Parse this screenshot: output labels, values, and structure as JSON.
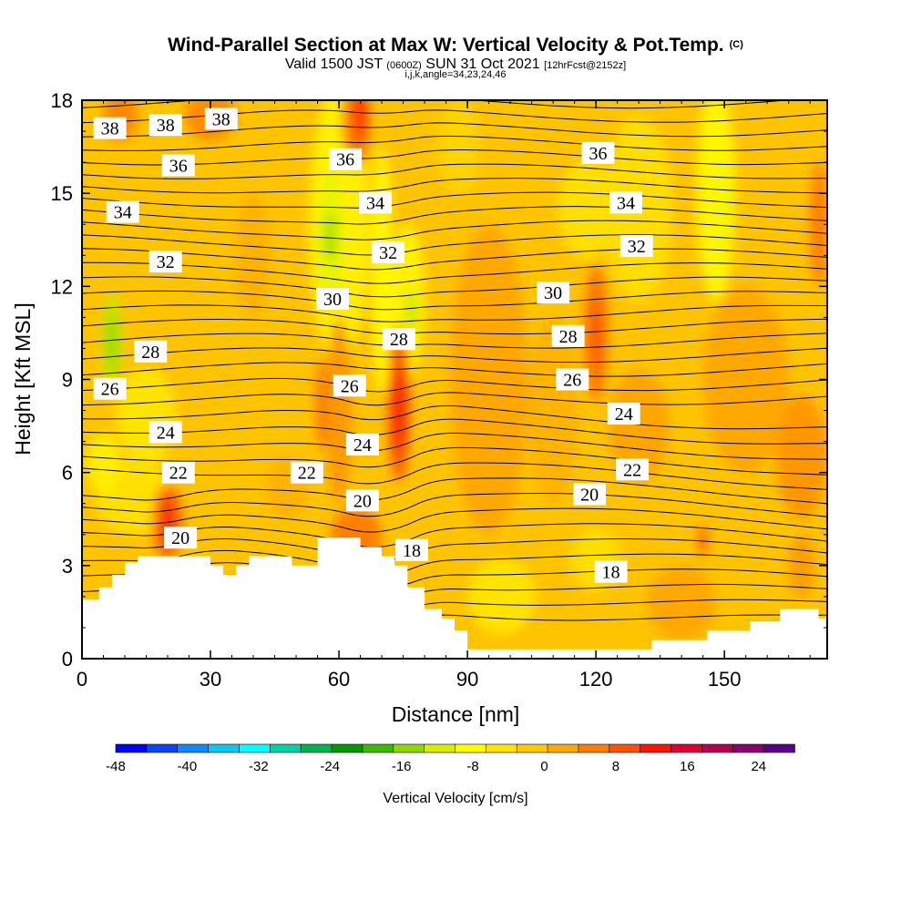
{
  "chart_data": {
    "type": "heatmap",
    "title": "Wind-Parallel Section at Max W: Vertical Velocity & Pot.Temp.",
    "copyright_mark": "(C)",
    "subtitle": {
      "prefix": "Valid 1500 JST",
      "utc": "(0600Z)",
      "date": "SUN 31 Oct 2021",
      "forecast": "[12hrFcst@2152z]"
    },
    "subtitle2": "i,j,k,angle=34,23,24,46",
    "xlabel": "Distance [nm]",
    "ylabel": "Height [Kft MSL]",
    "xlim": [
      0,
      174
    ],
    "ylim": [
      0,
      18
    ],
    "xticks": [
      0,
      30,
      60,
      90,
      120,
      150
    ],
    "yticks": [
      0,
      3,
      6,
      9,
      12,
      15,
      18
    ],
    "colorbar": {
      "label": "Vertical Velocity [cm/s]",
      "ticks": [
        -48,
        -40,
        -32,
        -24,
        -16,
        -8,
        0,
        8,
        16,
        24
      ],
      "min": -48,
      "max": 28,
      "colors": [
        "#0000ff",
        "#0a44ff",
        "#1188ff",
        "#0cc8ee",
        "#00ffff",
        "#00d2a8",
        "#00b44e",
        "#009a00",
        "#3cba00",
        "#8ed800",
        "#d8ee00",
        "#fefe00",
        "#ffe400",
        "#ffc800",
        "#ffa800",
        "#ff7e00",
        "#ff5200",
        "#ff1400",
        "#e00030",
        "#b80050",
        "#8c0070",
        "#5a0088"
      ]
    },
    "contour_labels": [
      {
        "text": "38",
        "x": 6.5,
        "y": 17.1
      },
      {
        "text": "38",
        "x": 19.5,
        "y": 17.2
      },
      {
        "text": "38",
        "x": 32.5,
        "y": 17.4
      },
      {
        "text": "36",
        "x": 22.5,
        "y": 15.9
      },
      {
        "text": "36",
        "x": 61.5,
        "y": 16.1
      },
      {
        "text": "36",
        "x": 120.5,
        "y": 16.3
      },
      {
        "text": "34",
        "x": 9.5,
        "y": 14.4
      },
      {
        "text": "34",
        "x": 68.5,
        "y": 14.7
      },
      {
        "text": "34",
        "x": 127,
        "y": 14.7
      },
      {
        "text": "32",
        "x": 19.5,
        "y": 12.8
      },
      {
        "text": "32",
        "x": 71.5,
        "y": 13.1
      },
      {
        "text": "32",
        "x": 129.5,
        "y": 13.3
      },
      {
        "text": "30",
        "x": 58.5,
        "y": 11.6
      },
      {
        "text": "30",
        "x": 110,
        "y": 11.8
      },
      {
        "text": "28",
        "x": 16,
        "y": 9.9
      },
      {
        "text": "28",
        "x": 74,
        "y": 10.3
      },
      {
        "text": "28",
        "x": 113.5,
        "y": 10.4
      },
      {
        "text": "26",
        "x": 6.5,
        "y": 8.7
      },
      {
        "text": "26",
        "x": 62.5,
        "y": 8.8
      },
      {
        "text": "26",
        "x": 114.5,
        "y": 9.0
      },
      {
        "text": "24",
        "x": 19.5,
        "y": 7.3
      },
      {
        "text": "24",
        "x": 65.5,
        "y": 6.9
      },
      {
        "text": "24",
        "x": 126.5,
        "y": 7.9
      },
      {
        "text": "22",
        "x": 22.5,
        "y": 6.0
      },
      {
        "text": "22",
        "x": 52.5,
        "y": 6.0
      },
      {
        "text": "22",
        "x": 128.5,
        "y": 6.1
      },
      {
        "text": "20",
        "x": 23,
        "y": 3.9
      },
      {
        "text": "20",
        "x": 65.5,
        "y": 5.1
      },
      {
        "text": "20",
        "x": 118.5,
        "y": 5.3
      },
      {
        "text": "18",
        "x": 77,
        "y": 3.5
      },
      {
        "text": "18",
        "x": 123.5,
        "y": 2.8
      }
    ]
  }
}
